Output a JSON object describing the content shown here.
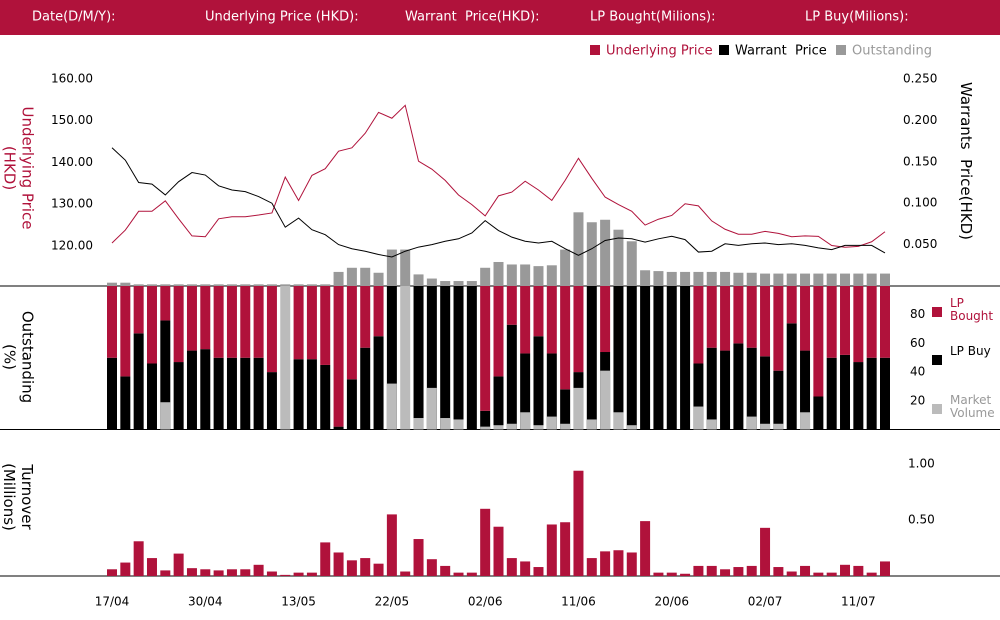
{
  "header": [
    "Date(D/M/Y):",
    "Underlying Price (HKD):",
    "Warrant  Price(HKD):",
    "LP Bought(Milions):",
    "LP Buy(Milions):"
  ],
  "chart_data": [
    {
      "type": "line",
      "ylabel": "Underlying Price (HKD)",
      "y2label": "Warrants  Price(HKD)",
      "ylim": [
        110.4,
        160
      ],
      "yticks": [
        {
          "value": 120,
          "label": "120.00"
        },
        {
          "value": 130,
          "label": "130.00"
        },
        {
          "value": 140,
          "label": "140.00"
        },
        {
          "value": 150,
          "label": "150.00"
        },
        {
          "value": 160,
          "label": "160.00"
        }
      ],
      "y2lim": [
        0,
        0.25
      ],
      "y2ticks": [
        {
          "value": 0.05,
          "label": "0.050"
        },
        {
          "value": 0.1,
          "label": "0.100"
        },
        {
          "value": 0.15,
          "label": "0.150"
        },
        {
          "value": 0.2,
          "label": "0.200"
        },
        {
          "value": 0.25,
          "label": "0.250"
        }
      ],
      "legend": "top-right",
      "series": [
        {
          "name": "Underlying Price",
          "color": "#b0123b",
          "type": "line",
          "axis": "y",
          "values": [
            120.7,
            123.8,
            128.3,
            128.3,
            130.8,
            126.5,
            122.4,
            122.2,
            126.5,
            127,
            127,
            127.4,
            127.9,
            136.5,
            130.9,
            136.9,
            138.5,
            142.7,
            143.5,
            147,
            152,
            150.6,
            153.7,
            140.3,
            138.4,
            135.7,
            132.2,
            129.9,
            127.2,
            132,
            132.9,
            135.5,
            133.4,
            130.9,
            135.7,
            141,
            136.2,
            131.7,
            129.9,
            128.3,
            125,
            126.4,
            127.3,
            130.1,
            129.6,
            126,
            124,
            122.8,
            122.8,
            123.5,
            123,
            122.2,
            122.4,
            122.3,
            120.1,
            119.7,
            119.9,
            121,
            123.4
          ]
        },
        {
          "name": "Warrant  Price",
          "color": "#000000",
          "type": "line",
          "axis": "y2",
          "values": [
            0.167,
            0.152,
            0.125,
            0.123,
            0.11,
            0.126,
            0.137,
            0.134,
            0.121,
            0.116,
            0.114,
            0.108,
            0.1,
            0.071,
            0.082,
            0.068,
            0.062,
            0.05,
            0.045,
            0.042,
            0.038,
            0.035,
            0.042,
            0.047,
            0.05,
            0.054,
            0.057,
            0.064,
            0.079,
            0.067,
            0.059,
            0.054,
            0.052,
            0.054,
            0.045,
            0.037,
            0.045,
            0.055,
            0.058,
            0.057,
            0.053,
            0.057,
            0.06,
            0.056,
            0.041,
            0.042,
            0.051,
            0.049,
            0.051,
            0.052,
            0.05,
            0.051,
            0.049,
            0.046,
            0.044,
            0.049,
            0.049,
            0.049,
            0.04
          ]
        },
        {
          "name": "Outstanding",
          "color": "#999999",
          "type": "bar",
          "axis": "y2",
          "values": [
            0.004,
            0.004,
            0.002,
            0.002,
            0.002,
            0.002,
            0.002,
            0.002,
            0.002,
            0.002,
            0.002,
            0.002,
            0.002,
            0.002,
            0.002,
            0.002,
            0.002,
            0.017,
            0.022,
            0.022,
            0.016,
            0.044,
            0.044,
            0.014,
            0.009,
            0.006,
            0.006,
            0.006,
            0.022,
            0.029,
            0.026,
            0.026,
            0.024,
            0.025,
            0.044,
            0.089,
            0.077,
            0.08,
            0.068,
            0.054,
            0.019,
            0.018,
            0.017,
            0.017,
            0.017,
            0.017,
            0.017,
            0.016,
            0.016,
            0.015,
            0.015,
            0.015,
            0.015,
            0.015,
            0.015,
            0.015,
            0.015,
            0.015,
            0.015
          ]
        }
      ]
    },
    {
      "type": "bar",
      "ylabel": "Outstanding (%)",
      "ylim": [
        0,
        100
      ],
      "yticks": [
        20,
        40,
        60,
        80
      ],
      "legend": "right",
      "series": [
        {
          "name": "LP Bought",
          "color": "#b0123b",
          "stacked": true,
          "values": [
            50,
            63,
            33,
            54,
            24,
            53,
            45,
            44,
            50,
            50,
            50,
            50,
            60,
            0,
            51,
            51,
            55,
            98,
            65,
            43,
            35,
            0,
            0,
            0,
            0,
            0,
            0,
            0,
            87,
            63,
            27,
            47,
            35,
            47,
            72,
            60,
            0,
            46,
            0,
            0,
            0,
            0,
            0,
            0,
            54,
            43,
            45,
            40,
            43,
            49,
            59,
            26,
            45,
            77,
            50,
            48,
            53,
            50,
            50
          ]
        },
        {
          "name": "LP Buy",
          "color": "#000000",
          "stacked": true,
          "values": [
            50,
            37,
            67,
            46,
            76,
            47,
            55,
            56,
            50,
            50,
            50,
            50,
            40,
            0,
            49,
            49,
            45,
            2,
            35,
            57,
            65,
            100,
            0,
            100,
            100,
            100,
            100,
            100,
            13,
            37,
            73,
            53,
            65,
            53,
            28,
            40,
            100,
            54,
            100,
            100,
            100,
            100,
            100,
            100,
            46,
            57,
            55,
            60,
            57,
            51,
            41,
            74,
            55,
            23,
            50,
            52,
            47,
            50,
            50
          ]
        },
        {
          "name": "Market Volume",
          "color": "#bbbbbb",
          "stacked": false,
          "values": [
            0,
            0,
            0,
            0,
            19,
            0,
            0,
            0,
            0,
            0,
            0,
            0,
            0,
            100,
            0,
            0,
            0,
            0,
            0,
            0,
            0,
            32,
            100,
            8,
            29,
            8,
            7,
            0,
            2,
            3,
            4,
            12,
            3,
            9,
            4,
            29,
            7,
            41,
            12,
            3,
            0,
            0,
            0,
            0,
            16,
            7,
            0,
            0,
            9,
            4,
            4,
            0,
            12,
            0,
            0,
            0,
            0,
            0,
            0
          ]
        }
      ]
    },
    {
      "type": "bar",
      "ylabel": "Turnover (Millions)",
      "ylim": [
        0,
        1.2
      ],
      "yticks": [
        {
          "value": 0.5,
          "label": "0.50"
        },
        {
          "value": 1,
          "label": "1.00"
        }
      ],
      "color": "#b0123b",
      "categories": [
        "17/04",
        null,
        null,
        null,
        null,
        null,
        null,
        "30/04",
        null,
        null,
        null,
        null,
        null,
        null,
        "13/05",
        null,
        null,
        null,
        null,
        null,
        null,
        "22/05",
        null,
        null,
        null,
        null,
        null,
        null,
        "02/06",
        null,
        null,
        null,
        null,
        null,
        null,
        "11/06",
        null,
        null,
        null,
        null,
        null,
        null,
        "20/06",
        null,
        null,
        null,
        null,
        null,
        null,
        "02/07",
        null,
        null,
        null,
        null,
        null,
        null,
        "11/07",
        null,
        null
      ],
      "values": [
        0.06,
        0.12,
        0.31,
        0.16,
        0.05,
        0.2,
        0.07,
        0.06,
        0.05,
        0.06,
        0.06,
        0.1,
        0.04,
        0.01,
        0.03,
        0.03,
        0.3,
        0.21,
        0.14,
        0.16,
        0.11,
        0.55,
        0.04,
        0.33,
        0.15,
        0.09,
        0.03,
        0.03,
        0.6,
        0.44,
        0.16,
        0.13,
        0.08,
        0.46,
        0.48,
        0.94,
        0.16,
        0.22,
        0.23,
        0.21,
        0.49,
        0.03,
        0.03,
        0.02,
        0.09,
        0.09,
        0.06,
        0.08,
        0.09,
        0.43,
        0.08,
        0.04,
        0.09,
        0.03,
        0.03,
        0.1,
        0.09,
        0.03,
        0.13
      ]
    }
  ]
}
